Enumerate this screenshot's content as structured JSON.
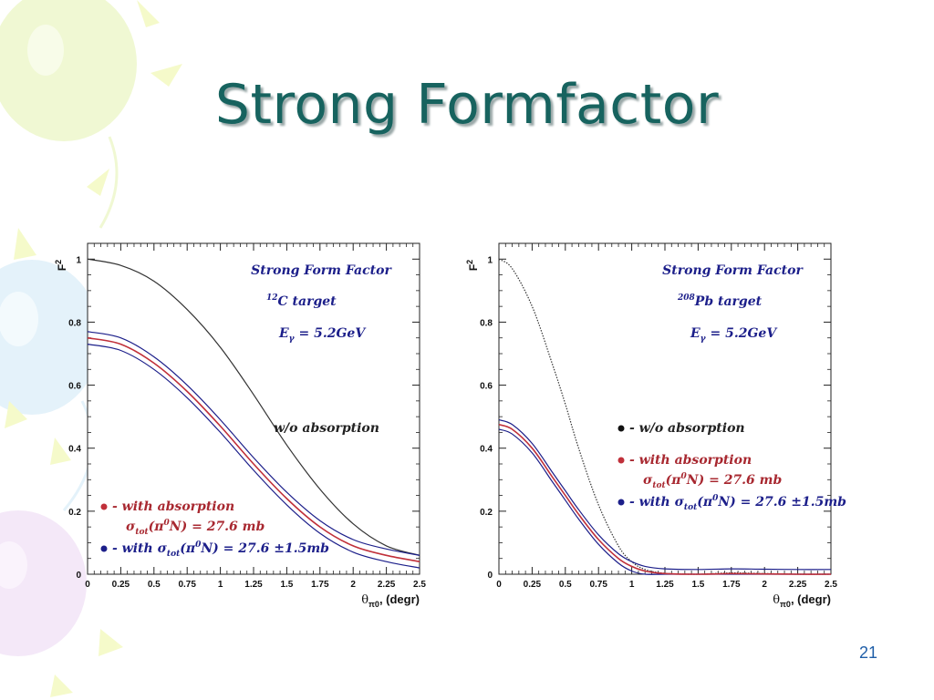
{
  "slide": {
    "title": "Strong Formfactor",
    "number": "21"
  },
  "colors": {
    "title": "#17635f",
    "red_series": "#c0303a",
    "blue_series": "#1c1f8a",
    "annotation_blue": "#1c1f8a",
    "annotation_red": "#a82830",
    "base_curve": "#333333"
  },
  "chart_data": [
    {
      "type": "line",
      "ylabel": "F",
      "ylabel_sup": "2",
      "xlabel_theta": "θ",
      "xlabel_sub": "π0",
      "xlabel_rest": ", (degr)",
      "xlim": [
        0,
        2.5
      ],
      "ylim": [
        0,
        1.05
      ],
      "x_ticks": [
        "0",
        "0.25",
        "0.5",
        "0.75",
        "1",
        "1.25",
        "1.5",
        "1.75",
        "2",
        "2.25",
        "2.5"
      ],
      "y_ticks": [
        "0",
        "0.2",
        "0.4",
        "0.6",
        "0.8",
        "1"
      ],
      "annotations": {
        "heading": "Strong Form Factor",
        "target_sup": "12",
        "target": "C target",
        "energy_pre": "E",
        "energy_sub": "γ",
        "energy_post": " = 5.2GeV",
        "curve_label": "w/o absorption"
      },
      "legend": {
        "item1_label": "- with absorption",
        "item1_sub_sigma": "σ",
        "item1_sub_tot": "tot",
        "item1_pi": "(π",
        "item1_sup0": "0",
        "item1_tail": "N) = 27.6 mb",
        "item2_pre": "- with σ",
        "item2_tot": "tot",
        "item2_pi": "(π",
        "item2_sup0": "0",
        "item2_tail": "N) = 27.6 ±1.5mb"
      },
      "series": [
        {
          "style": "solid",
          "color_key": "base_curve",
          "x": [
            0,
            0.25,
            0.5,
            0.75,
            1.0,
            1.25,
            1.5,
            1.75,
            2.0,
            2.25,
            2.5
          ],
          "y": [
            1.0,
            0.98,
            0.93,
            0.84,
            0.72,
            0.57,
            0.41,
            0.27,
            0.16,
            0.09,
            0.06
          ]
        },
        {
          "style": "band",
          "color_key": "red_series",
          "x": [
            0,
            0.25,
            0.5,
            0.75,
            1.0,
            1.25,
            1.5,
            1.75,
            2.0,
            2.25,
            2.5
          ],
          "y": [
            0.75,
            0.73,
            0.67,
            0.58,
            0.47,
            0.35,
            0.24,
            0.15,
            0.09,
            0.06,
            0.04
          ],
          "band": 0.02
        }
      ]
    },
    {
      "type": "line",
      "ylabel": "F",
      "ylabel_sup": "2",
      "xlabel_theta": "θ",
      "xlabel_sub": "π0",
      "xlabel_rest": ", (degr)",
      "xlim": [
        0,
        2.5
      ],
      "ylim": [
        0,
        1.05
      ],
      "x_ticks": [
        "0",
        "0.25",
        "0.5",
        "0.75",
        "1",
        "1.25",
        "1.5",
        "1.75",
        "2",
        "2.25",
        "2.5"
      ],
      "y_ticks": [
        "0",
        "0.2",
        "0.4",
        "0.6",
        "0.8",
        "1"
      ],
      "annotations": {
        "heading": "Strong Form Factor",
        "target_sup": "208",
        "target": "Pb target",
        "energy_pre": "E",
        "energy_sub": "γ",
        "energy_post": " = 5.2GeV",
        "curve_label": ""
      },
      "legend": {
        "item0_label": "- w/o absorption",
        "item1_label": "- with absorption",
        "item1_sub_sigma": "σ",
        "item1_sub_tot": "tot",
        "item1_pi": "(π",
        "item1_sup0": "0",
        "item1_tail": "N) = 27.6 mb",
        "item2_pre": "- with σ",
        "item2_tot": "tot",
        "item2_pi": "(π",
        "item2_sup0": "0",
        "item2_tail": "N) = 27.6 ±1.5mb"
      },
      "series": [
        {
          "style": "dotted",
          "color_key": "base_curve",
          "x": [
            0,
            0.1,
            0.25,
            0.4,
            0.5,
            0.6,
            0.75,
            0.9,
            1.0,
            1.1,
            1.25,
            1.5,
            1.75,
            2.0,
            2.25,
            2.5
          ],
          "y": [
            1.0,
            0.97,
            0.85,
            0.67,
            0.54,
            0.4,
            0.22,
            0.09,
            0.04,
            0.015,
            0.003,
            0.0,
            0.004,
            0.002,
            0.0,
            0.0
          ]
        },
        {
          "style": "band",
          "color_key": "red_series",
          "x": [
            0,
            0.1,
            0.25,
            0.4,
            0.5,
            0.6,
            0.75,
            0.9,
            1.0,
            1.1,
            1.25,
            1.5,
            1.75,
            2.0,
            2.25,
            2.5
          ],
          "y": [
            0.475,
            0.46,
            0.4,
            0.31,
            0.25,
            0.19,
            0.11,
            0.05,
            0.025,
            0.01,
            0.002,
            0.0,
            0.002,
            0.001,
            0.0,
            0.0
          ],
          "band": 0.015
        }
      ]
    }
  ]
}
